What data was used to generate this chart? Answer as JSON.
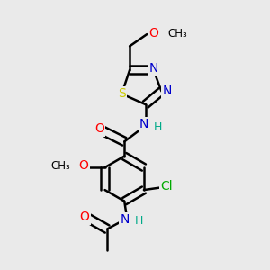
{
  "bg_color": "#eaeaea",
  "bond_color": "#000000",
  "bond_width": 1.8,
  "colors": {
    "N": "#0000cc",
    "O": "#ff0000",
    "S": "#cccc00",
    "Cl": "#00aa00",
    "H": "#00aa88",
    "C": "#000000"
  }
}
